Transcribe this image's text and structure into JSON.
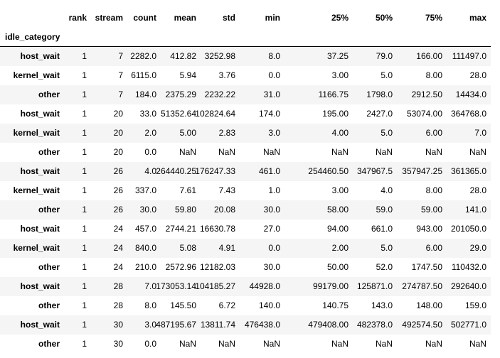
{
  "table": {
    "columns": [
      "rank",
      "stream",
      "count",
      "mean",
      "std",
      "min",
      "25%",
      "50%",
      "75%",
      "max"
    ],
    "index_name": "idle_category",
    "rows": [
      [
        "host_wait",
        "1",
        "7",
        "2282.0",
        "412.82",
        "3252.98",
        "8.0",
        "37.25",
        "79.0",
        "166.00",
        "111497.0"
      ],
      [
        "kernel_wait",
        "1",
        "7",
        "6115.0",
        "5.94",
        "3.76",
        "0.0",
        "3.00",
        "5.0",
        "8.00",
        "28.0"
      ],
      [
        "other",
        "1",
        "7",
        "184.0",
        "2375.29",
        "2232.22",
        "31.0",
        "1166.75",
        "1798.0",
        "2912.50",
        "14434.0"
      ],
      [
        "host_wait",
        "1",
        "20",
        "33.0",
        "51352.64",
        "102824.64",
        "174.0",
        "195.00",
        "2427.0",
        "53074.00",
        "364768.0"
      ],
      [
        "kernel_wait",
        "1",
        "20",
        "2.0",
        "5.00",
        "2.83",
        "3.0",
        "4.00",
        "5.0",
        "6.00",
        "7.0"
      ],
      [
        "other",
        "1",
        "20",
        "0.0",
        "NaN",
        "NaN",
        "NaN",
        "NaN",
        "NaN",
        "NaN",
        "NaN"
      ],
      [
        "host_wait",
        "1",
        "26",
        "4.0",
        "264440.25",
        "176247.33",
        "461.0",
        "254460.50",
        "347967.5",
        "357947.25",
        "361365.0"
      ],
      [
        "kernel_wait",
        "1",
        "26",
        "337.0",
        "7.61",
        "7.43",
        "1.0",
        "3.00",
        "4.0",
        "8.00",
        "28.0"
      ],
      [
        "other",
        "1",
        "26",
        "30.0",
        "59.80",
        "20.08",
        "30.0",
        "58.00",
        "59.0",
        "59.00",
        "141.0"
      ],
      [
        "host_wait",
        "1",
        "24",
        "457.0",
        "2744.21",
        "16630.78",
        "27.0",
        "94.00",
        "661.0",
        "943.00",
        "201050.0"
      ],
      [
        "kernel_wait",
        "1",
        "24",
        "840.0",
        "5.08",
        "4.91",
        "0.0",
        "2.00",
        "5.0",
        "6.00",
        "29.0"
      ],
      [
        "other",
        "1",
        "24",
        "210.0",
        "2572.96",
        "12182.03",
        "30.0",
        "50.00",
        "52.0",
        "1747.50",
        "110432.0"
      ],
      [
        "host_wait",
        "1",
        "28",
        "7.0",
        "173053.14",
        "104185.27",
        "44928.0",
        "99179.00",
        "125871.0",
        "274787.50",
        "292640.0"
      ],
      [
        "other",
        "1",
        "28",
        "8.0",
        "145.50",
        "6.72",
        "140.0",
        "140.75",
        "143.0",
        "148.00",
        "159.0"
      ],
      [
        "host_wait",
        "1",
        "30",
        "3.0",
        "487195.67",
        "13811.74",
        "476438.0",
        "479408.00",
        "482378.0",
        "492574.50",
        "502771.0"
      ],
      [
        "other",
        "1",
        "30",
        "0.0",
        "NaN",
        "NaN",
        "NaN",
        "NaN",
        "NaN",
        "NaN",
        "NaN"
      ]
    ]
  }
}
